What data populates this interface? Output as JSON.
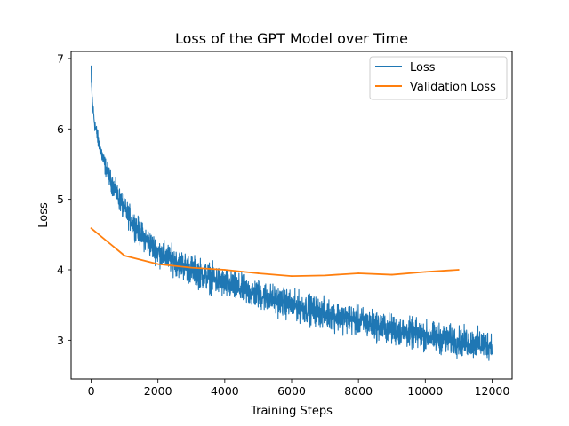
{
  "chart_data": {
    "type": "line",
    "title": "Loss of the GPT Model over Time",
    "xlabel": "Training Steps",
    "ylabel": "Loss",
    "xlim": [
      -600,
      12600
    ],
    "ylim": [
      2.45,
      7.1
    ],
    "xticks": [
      0,
      2000,
      4000,
      6000,
      8000,
      10000,
      12000
    ],
    "xtick_labels": [
      "0",
      "2000",
      "4000",
      "6000",
      "8000",
      "10000",
      "12000"
    ],
    "yticks": [
      3,
      4,
      5,
      6,
      7
    ],
    "ytick_labels": [
      "3",
      "4",
      "5",
      "6",
      "7"
    ],
    "grid": false,
    "legend_position": "top-right",
    "series": [
      {
        "name": "Loss",
        "color": "#1f77b4",
        "style": "noisy",
        "x_range": [
          0,
          12000
        ],
        "trend": {
          "x": [
            0,
            50,
            100,
            200,
            400,
            600,
            1000,
            1500,
            2000,
            3000,
            4000,
            5000,
            6000,
            7000,
            8000,
            9000,
            10000,
            11000,
            12000
          ],
          "y": [
            6.7,
            6.3,
            6.1,
            5.85,
            5.5,
            5.25,
            4.85,
            4.5,
            4.25,
            4.0,
            3.8,
            3.65,
            3.5,
            3.38,
            3.27,
            3.15,
            3.06,
            2.98,
            2.93
          ]
        },
        "spread": {
          "x": [
            0,
            1000,
            3000,
            6000,
            12000
          ],
          "y": [
            0.15,
            0.25,
            0.3,
            0.3,
            0.3
          ]
        },
        "peak": {
          "x": 0,
          "y": 6.9
        },
        "min": 2.65
      },
      {
        "name": "Validation Loss",
        "color": "#ff7f0e",
        "style": "line",
        "x": [
          0,
          1000,
          2000,
          3000,
          4000,
          5000,
          6000,
          7000,
          8000,
          9000,
          10000,
          11000
        ],
        "y": [
          4.59,
          4.2,
          4.08,
          4.03,
          4.0,
          3.95,
          3.91,
          3.92,
          3.95,
          3.93,
          3.97,
          4.0
        ]
      }
    ]
  }
}
